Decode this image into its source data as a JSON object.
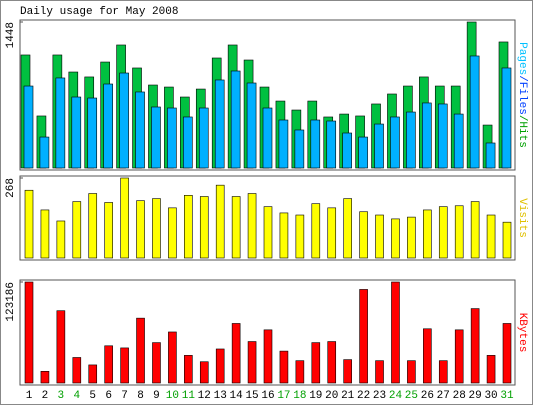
{
  "chart_data": [
    {
      "type": "bar",
      "title": "Daily usage for May 2008",
      "categories": [
        "1",
        "2",
        "3",
        "4",
        "5",
        "6",
        "7",
        "8",
        "9",
        "10",
        "11",
        "12",
        "13",
        "14",
        "15",
        "16",
        "17",
        "18",
        "19",
        "20",
        "21",
        "22",
        "23",
        "24",
        "25",
        "26",
        "27",
        "28",
        "29",
        "30",
        "31"
      ],
      "weekend": [
        2,
        3,
        9,
        10,
        16,
        17,
        23,
        24,
        30
      ],
      "weekend_color": "#00a000",
      "y_label_parts": [
        {
          "text": "Pages",
          "color": "#00c0ff"
        },
        {
          "text": "/",
          "color": "#0040ff"
        },
        {
          "text": "Files",
          "color": "#0040ff"
        },
        {
          "text": "/",
          "color": "#00a000"
        },
        {
          "text": "Hits",
          "color": "#00a000"
        }
      ],
      "ylim": [
        0,
        1448
      ],
      "yticks": [
        1448
      ],
      "series": [
        {
          "name": "Hits",
          "color": "#00c040",
          "values": [
            1121,
            516,
            1121,
            952,
            903,
            1051,
            1220,
            992,
            823,
            803,
            704,
            783,
            1091,
            1220,
            1071,
            803,
            664,
            575,
            664,
            506,
            535,
            516,
            635,
            734,
            813,
            903,
            813,
            813,
            1448,
            426,
            1250
          ]
        },
        {
          "name": "Files",
          "color": "#00b0ff",
          "values": [
            813,
            307,
            893,
            704,
            694,
            833,
            942,
            754,
            605,
            595,
            506,
            595,
            873,
            962,
            843,
            595,
            476,
            377,
            476,
            466,
            347,
            307,
            436,
            506,
            555,
            645,
            635,
            535,
            1111,
            248,
            992
          ]
        }
      ]
    },
    {
      "type": "bar",
      "y_label": "Visits",
      "y_label_color": "#e0c000",
      "ylim": [
        0,
        268
      ],
      "yticks": [
        268
      ],
      "series": [
        {
          "name": "Visits",
          "color": "#ffff00",
          "values": [
            227,
            161,
            124,
            189,
            216,
            186,
            268,
            192,
            199,
            168,
            210,
            206,
            244,
            206,
            216,
            172,
            151,
            144,
            182,
            168,
            199,
            155,
            144,
            131,
            137,
            161,
            172,
            175,
            189,
            144,
            120
          ]
        }
      ]
    },
    {
      "type": "bar",
      "y_label": "KBytes",
      "y_label_color": "#ff0000",
      "ylim": [
        0,
        123186
      ],
      "yticks": [
        123186
      ],
      "series": [
        {
          "name": "KBytes",
          "color": "#ff0000",
          "values": [
            123186,
            14263,
            88175,
            31120,
            22044,
            45384,
            42791,
            79098,
            49274,
            62241,
            33714,
            25934,
            41494,
            72615,
            50571,
            64835,
            38900,
            27230,
            49274,
            50571,
            28527,
            114109,
            27230,
            123186,
            27230,
            66131,
            27230,
            64835,
            90768,
            33714,
            72615
          ]
        }
      ]
    }
  ]
}
